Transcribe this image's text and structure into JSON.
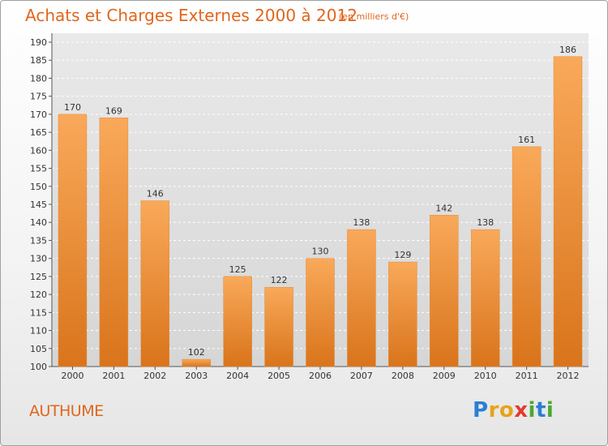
{
  "chart_data": {
    "type": "bar",
    "title": "Achats et Charges Externes 2000 à 2012",
    "subtitle": "(en milliers d'€)",
    "categories": [
      "2000",
      "2001",
      "2002",
      "2003",
      "2004",
      "2005",
      "2006",
      "2007",
      "2008",
      "2009",
      "2010",
      "2011",
      "2012"
    ],
    "values": [
      170,
      169,
      146,
      102,
      125,
      122,
      130,
      138,
      129,
      142,
      138,
      161,
      186
    ],
    "ylim": [
      100,
      190
    ],
    "yticks": [
      100,
      105,
      110,
      115,
      120,
      125,
      130,
      135,
      140,
      145,
      150,
      155,
      160,
      165,
      170,
      175,
      180,
      185,
      190
    ],
    "grid": true,
    "xlabel": "",
    "ylabel": ""
  },
  "commune": "AUTHUME",
  "logo": {
    "text": "Proxiti",
    "letters": [
      "P",
      "r",
      "o",
      "x",
      "i",
      "t",
      "i"
    ],
    "colors": [
      "#2a7fd4",
      "#e8a317",
      "#e8a317",
      "#e23b2e",
      "#4aa832",
      "#2a7fd4",
      "#4aa832"
    ]
  },
  "colors": {
    "bar_top": "#f9a95a",
    "bar_bottom": "#d9741b",
    "accent": "#e0661c"
  }
}
